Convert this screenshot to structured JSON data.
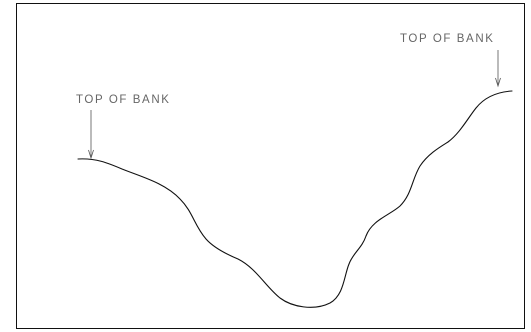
{
  "labels": {
    "left_top_of_bank": "TOP OF BANK",
    "right_top_of_bank": "TOP OF BANK"
  },
  "colors": {
    "line": "#111111",
    "label_text": "#666666",
    "leader": "#555555",
    "background": "#ffffff"
  }
}
